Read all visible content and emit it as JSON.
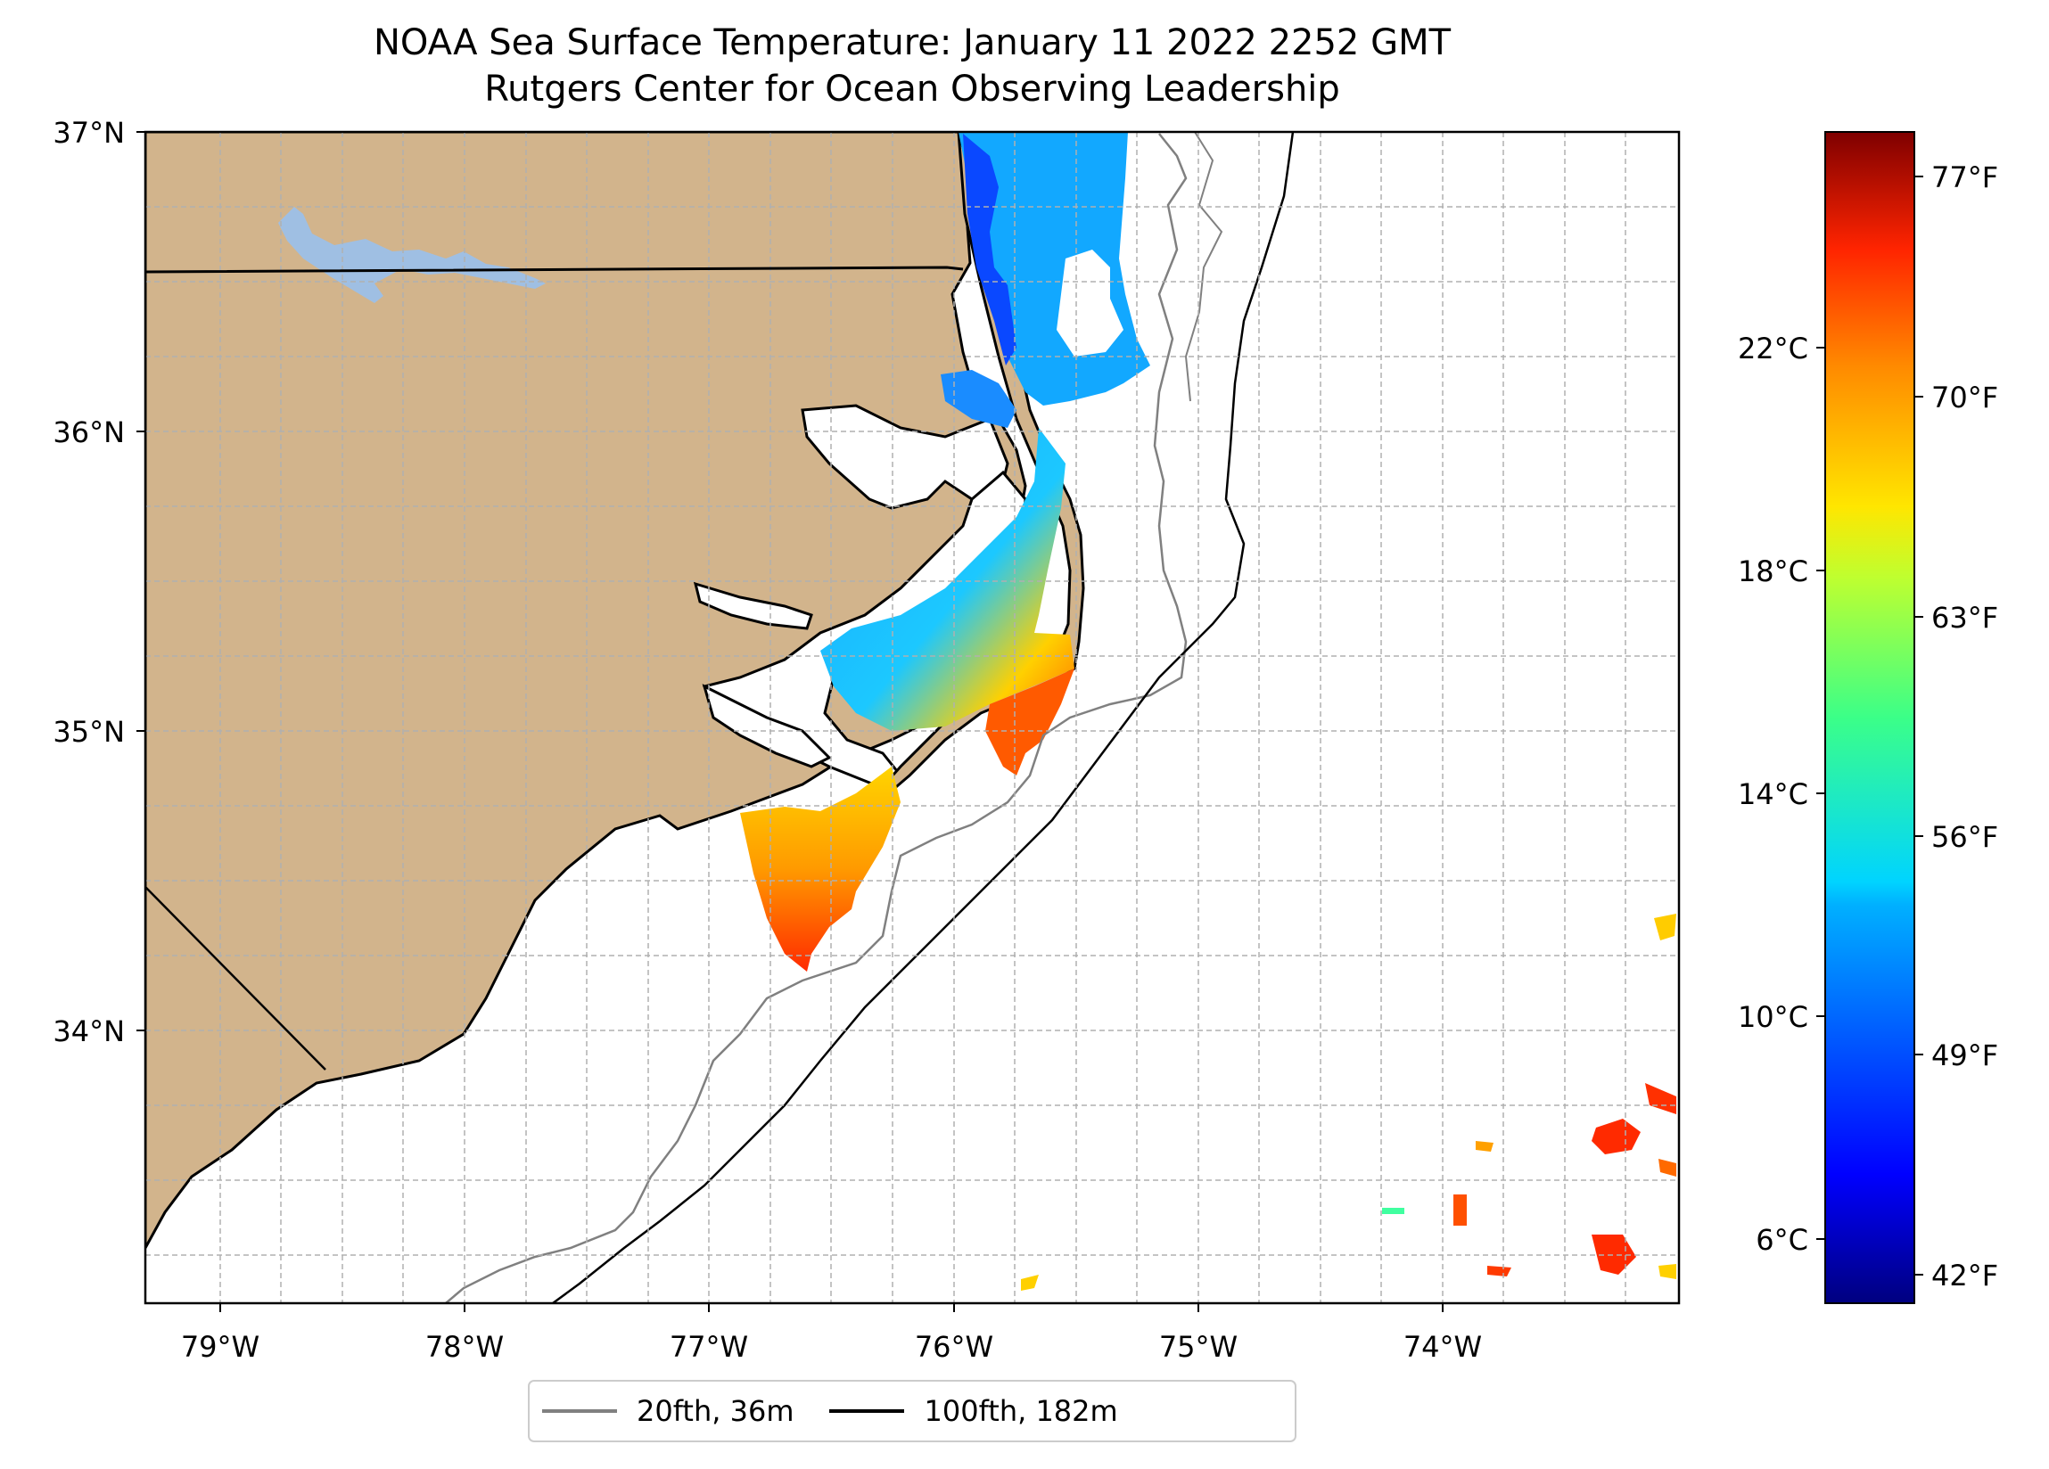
{
  "title": {
    "line1": "NOAA Sea Surface Temperature: January 11 2022 2252 GMT",
    "line2": "Rutgers Center for Ocean Observing Leadership"
  },
  "map": {
    "lat_range": [
      33.1,
      37.0
    ],
    "lon_range": [
      -79.3,
      -73.1
    ],
    "lat_ticks": [
      "37°N",
      "36°N",
      "35°N",
      "34°N"
    ],
    "lon_ticks": [
      "79°W",
      "78°W",
      "77°W",
      "76°W",
      "75°W",
      "74°W"
    ],
    "land_color": "#d2b48c",
    "lake_color": "#9fbfe3",
    "coastline_color": "#000000",
    "grid": true
  },
  "colorbar": {
    "colormap": "jet",
    "range_celsius": [
      5.0,
      26.0
    ],
    "celsius_ticks": [
      "22°C",
      "18°C",
      "14°C",
      "10°C",
      "6°C"
    ],
    "fahrenheit_ticks": [
      "77°F",
      "70°F",
      "63°F",
      "56°F",
      "49°F",
      "42°F"
    ]
  },
  "legend": {
    "items": [
      {
        "label": "20fth, 36m",
        "color": "#808080"
      },
      {
        "label": "100fth, 182m",
        "color": "#000000"
      }
    ]
  }
}
